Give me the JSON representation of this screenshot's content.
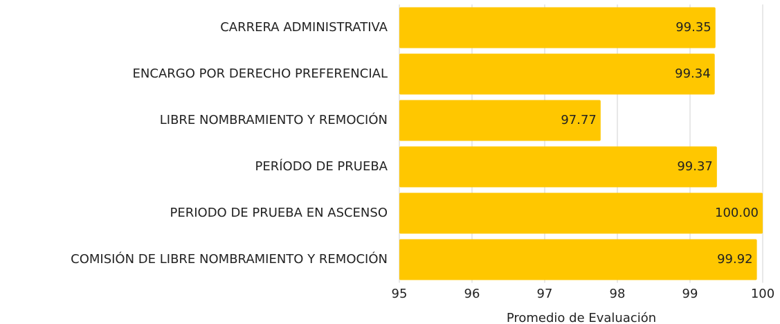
{
  "chart_data": {
    "type": "bar",
    "orientation": "horizontal",
    "categories": [
      "CARRERA ADMINISTRATIVA",
      "ENCARGO POR DERECHO PREFERENCIAL",
      "LIBRE NOMBRAMIENTO Y REMOCIÓN",
      "PERÍODO DE PRUEBA",
      "PERIODO DE PRUEBA EN ASCENSO",
      "COMISIÓN DE LIBRE NOMBRAMIENTO Y REMOCIÓN"
    ],
    "values": [
      99.35,
      99.34,
      97.77,
      99.37,
      100,
      99.92
    ],
    "value_labels": [
      "99.35",
      "99.34",
      "97.77",
      "99.37",
      "100.00",
      "99.92"
    ],
    "color": "#ffc700",
    "xlabel": "Promedio de Evaluación",
    "xlim": [
      95,
      100
    ],
    "xticks": [
      95,
      96,
      97,
      98,
      99,
      100
    ],
    "grid": true
  }
}
